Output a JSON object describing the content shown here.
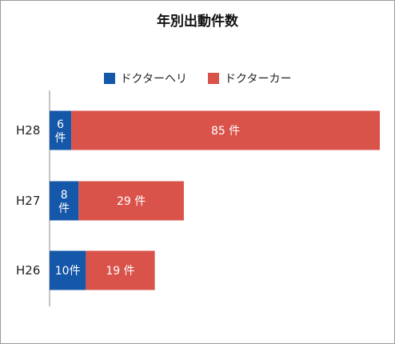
{
  "chart_data": {
    "type": "bar",
    "orientation": "horizontal",
    "stacked": true,
    "title": "年別出動件数",
    "categories": [
      "H28",
      "H27",
      "H26"
    ],
    "series": [
      {
        "name": "ドクターヘリ",
        "color": "#1557a8",
        "values": [
          6,
          8,
          10
        ],
        "labels": [
          "6\n件",
          "8\n件",
          "10件"
        ]
      },
      {
        "name": "ドクターカー",
        "color": "#d9534b",
        "values": [
          85,
          29,
          19
        ],
        "labels": [
          "85 件",
          "29 件",
          "19 件"
        ]
      }
    ],
    "legend": "top-center",
    "grid": false,
    "xlim": [
      0,
      91
    ]
  }
}
